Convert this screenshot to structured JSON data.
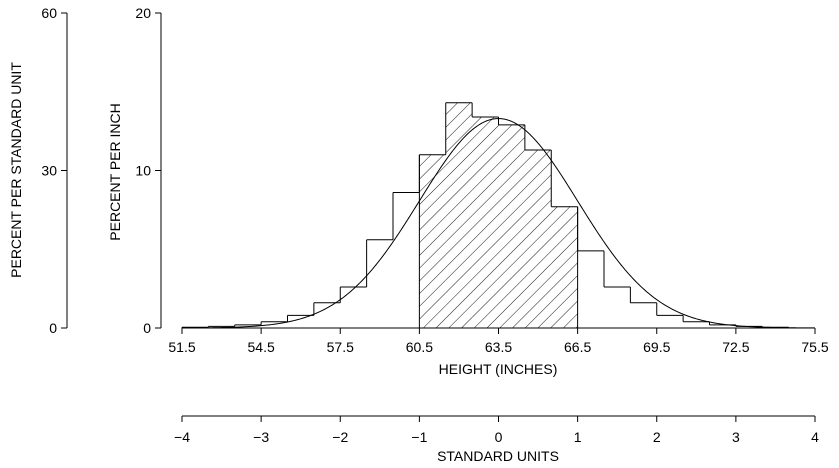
{
  "chart_data": {
    "type": "bar",
    "subtype": "histogram-with-normal-curve",
    "x_axis": {
      "label": "HEIGHT (INCHES)",
      "range": [
        51.5,
        75.5
      ],
      "ticks": [
        "51.5",
        "54.5",
        "57.5",
        "60.5",
        "63.5",
        "66.5",
        "69.5",
        "72.5",
        "75.5"
      ]
    },
    "secondary_x_axis": {
      "label": "STANDARD UNITS",
      "range": [
        -4,
        4
      ],
      "ticks": [
        "−4",
        "−3",
        "−2",
        "−1",
        "0",
        "1",
        "2",
        "3",
        "4"
      ]
    },
    "y_axis_left": {
      "label": "PERCENT PER STANDARD UNIT",
      "range": [
        0,
        60
      ],
      "ticks": [
        "0",
        "30",
        "60"
      ]
    },
    "y_axis_right": {
      "label": "PERCENT PER INCH",
      "range": [
        0,
        20
      ],
      "ticks": [
        "0",
        "10",
        "20"
      ]
    },
    "bin_width": 1,
    "bins_start": [
      51.5,
      52.5,
      53.5,
      54.5,
      55.5,
      56.5,
      57.5,
      58.5,
      59.5,
      60.5,
      61.5,
      62.5,
      63.5,
      64.5,
      65.5,
      66.5,
      67.5,
      68.5,
      69.5,
      70.5,
      71.5,
      72.5,
      73.5,
      74.5
    ],
    "values": [
      0.05,
      0.1,
      0.2,
      0.4,
      0.8,
      1.6,
      2.6,
      5.6,
      8.6,
      11.0,
      14.3,
      13.4,
      12.9,
      11.3,
      7.7,
      4.9,
      2.6,
      1.6,
      0.8,
      0.4,
      0.2,
      0.1,
      0.05,
      0.0
    ],
    "shaded_range": [
      60.5,
      66.5
    ],
    "normal_curve": {
      "mean": 63.5,
      "sd": 3
    },
    "grid": false,
    "legend": "none"
  }
}
